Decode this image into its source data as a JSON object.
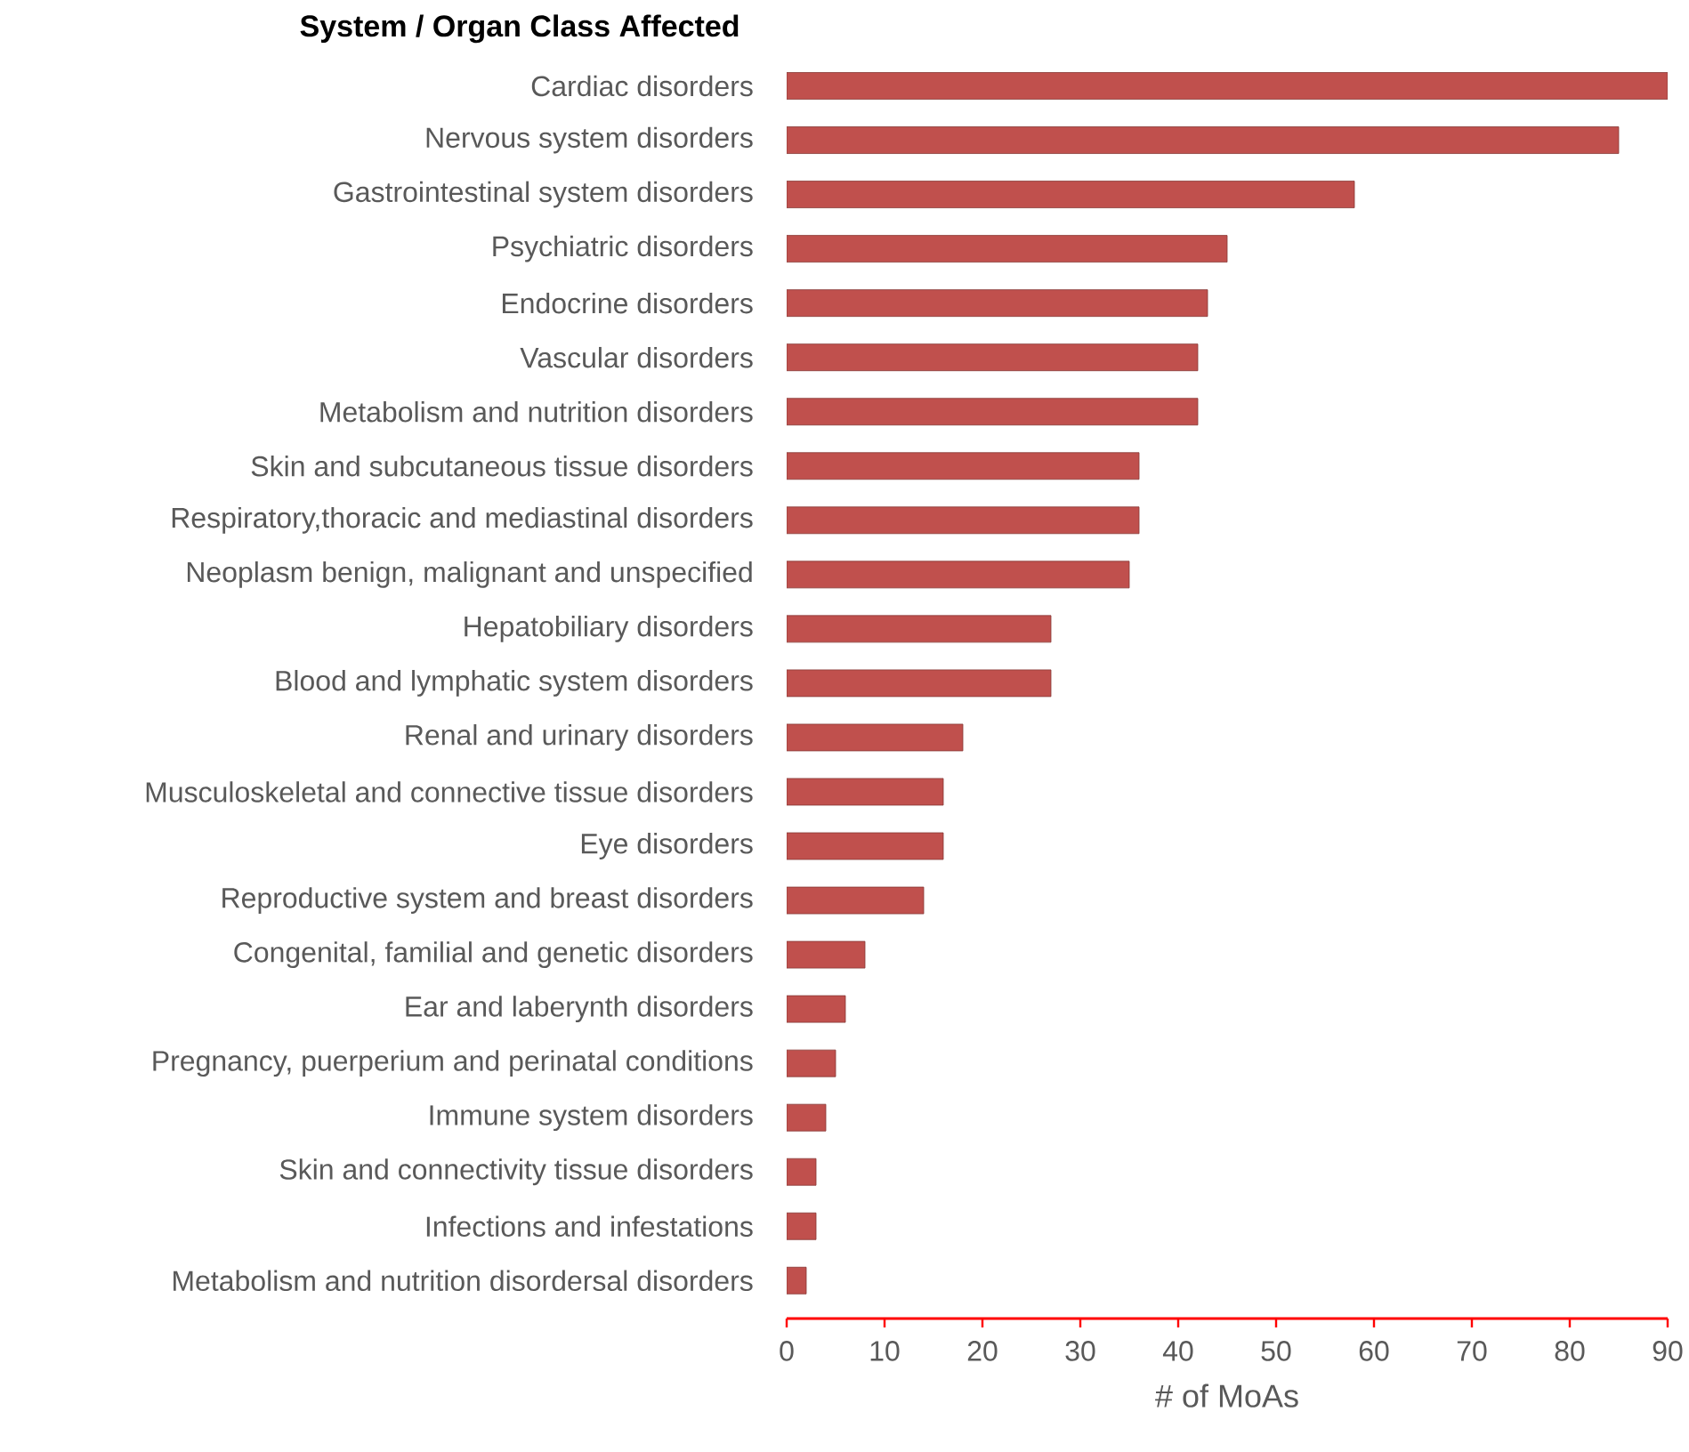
{
  "chart_data": {
    "type": "bar",
    "orientation": "horizontal",
    "title": "System / Organ Class Affected",
    "xlabel": "# of MoAs",
    "categories": [
      "Cardiac disorders",
      "Nervous system disorders",
      "Gastrointestinal system disorders",
      "Psychiatric disorders",
      "Endocrine disorders",
      "Vascular disorders",
      "Metabolism and nutrition disorders",
      "Skin and subcutaneous tissue disorders",
      "Respiratory,thoracic and mediastinal disorders",
      "Neoplasm benign, malignant and unspecified",
      "Hepatobiliary disorders",
      "Blood and lymphatic system disorders",
      "Renal and urinary disorders",
      "Musculoskeletal and connective tissue disorders",
      "Eye disorders",
      "Reproductive system and breast disorders",
      "Congenital, familial and genetic disorders",
      "Ear and laberynth disorders",
      "Pregnancy, puerperium and perinatal conditions",
      "Immune system disorders",
      "Skin and connectivity tissue disorders",
      "Infections and infestations",
      "Metabolism and nutrition disordersal disorders"
    ],
    "values": [
      90,
      85,
      58,
      45,
      43,
      42,
      42,
      36,
      36,
      35,
      27,
      27,
      18,
      16,
      16,
      14,
      8,
      6,
      5,
      4,
      3,
      3,
      2
    ],
    "color": "#c0504d",
    "xlim": [
      0,
      90
    ],
    "xticks": [
      0,
      10,
      20,
      30,
      40,
      50,
      60,
      70,
      80,
      90
    ]
  }
}
